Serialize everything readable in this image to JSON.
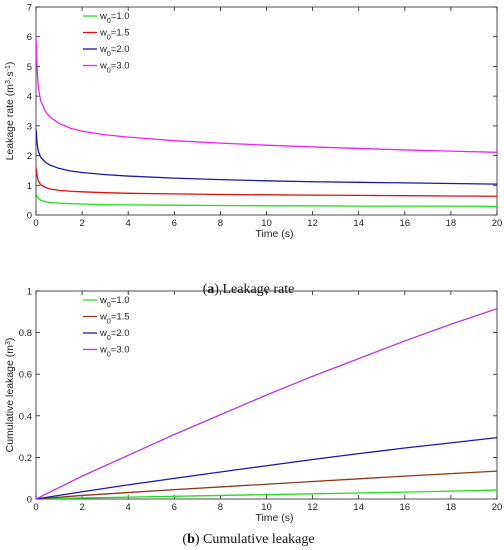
{
  "chart_data": [
    {
      "type": "line",
      "caption_letter": "a",
      "caption_text": "Leakage rate",
      "xlabel": "Time (s)",
      "ylabel_main": "Leakage rate (m",
      "ylabel_sup1": "3",
      "ylabel_mid": "·s",
      "ylabel_sup2": "-1",
      "ylabel_end": ")",
      "xlim": [
        0,
        20
      ],
      "ylim": [
        0,
        7
      ],
      "xticks": [
        "0",
        "2",
        "4",
        "6",
        "8",
        "10",
        "12",
        "14",
        "16",
        "18",
        "20"
      ],
      "yticks": [
        "0",
        "1",
        "2",
        "3",
        "4",
        "5",
        "6",
        "7"
      ],
      "grid": false,
      "legend_position": "top-left",
      "series": [
        {
          "name_main": "w",
          "name_sub": "0",
          "name_rest": "=1.0",
          "color": "#22dd22",
          "x": [
            0,
            0.05,
            0.1,
            0.2,
            0.4,
            0.6,
            1,
            1.5,
            2,
            3,
            4,
            6,
            8,
            10,
            12,
            14,
            16,
            18,
            20
          ],
          "y": [
            0.72,
            0.62,
            0.56,
            0.5,
            0.45,
            0.42,
            0.4,
            0.38,
            0.37,
            0.35,
            0.34,
            0.33,
            0.32,
            0.31,
            0.31,
            0.3,
            0.3,
            0.3,
            0.29
          ]
        },
        {
          "name_main": "w",
          "name_sub": "0",
          "name_rest": "=1.5",
          "color": "#dd1111",
          "x": [
            0,
            0.05,
            0.1,
            0.2,
            0.4,
            0.6,
            1,
            1.5,
            2,
            3,
            4,
            6,
            8,
            10,
            12,
            14,
            16,
            18,
            20
          ],
          "y": [
            1.6,
            1.3,
            1.15,
            1.02,
            0.93,
            0.88,
            0.83,
            0.8,
            0.78,
            0.75,
            0.73,
            0.71,
            0.69,
            0.68,
            0.67,
            0.66,
            0.65,
            0.64,
            0.63
          ]
        },
        {
          "name_main": "w",
          "name_sub": "0",
          "name_rest": "=2.0",
          "color": "#1a1aaa",
          "x": [
            0,
            0.05,
            0.1,
            0.2,
            0.4,
            0.6,
            1,
            1.5,
            2,
            3,
            4,
            6,
            8,
            10,
            12,
            14,
            16,
            18,
            20
          ],
          "y": [
            2.9,
            2.4,
            2.15,
            1.95,
            1.78,
            1.68,
            1.57,
            1.48,
            1.43,
            1.36,
            1.31,
            1.24,
            1.19,
            1.15,
            1.12,
            1.1,
            1.08,
            1.06,
            1.04
          ]
        },
        {
          "name_main": "w",
          "name_sub": "0",
          "name_rest": "=3.0",
          "color": "#ee22ee",
          "x": [
            0,
            0.05,
            0.1,
            0.2,
            0.4,
            0.6,
            1,
            1.5,
            2,
            3,
            4,
            6,
            8,
            10,
            12,
            14,
            16,
            18,
            20
          ],
          "y": [
            6.0,
            4.9,
            4.3,
            3.85,
            3.5,
            3.3,
            3.08,
            2.92,
            2.82,
            2.7,
            2.62,
            2.5,
            2.42,
            2.35,
            2.29,
            2.24,
            2.19,
            2.15,
            2.11
          ]
        }
      ]
    },
    {
      "type": "line",
      "caption_letter": "b",
      "caption_text": "Cumulative leakage",
      "xlabel": "Time (s)",
      "ylabel_main": "Cumulative leakage (m",
      "ylabel_sup1": "3",
      "ylabel_mid": "",
      "ylabel_sup2": "",
      "ylabel_end": ")",
      "xlim": [
        0,
        20
      ],
      "ylim": [
        0,
        1
      ],
      "xticks": [
        "0",
        "2",
        "4",
        "6",
        "8",
        "10",
        "12",
        "14",
        "16",
        "18",
        "20"
      ],
      "yticks": [
        "0",
        "0.2",
        "0.4",
        "0.6",
        "0.8",
        "1"
      ],
      "grid": false,
      "legend_position": "top-left",
      "series": [
        {
          "name_main": "w",
          "name_sub": "0",
          "name_rest": "=1.0",
          "color": "#22dd22",
          "x": [
            0,
            2,
            4,
            6,
            8,
            10,
            12,
            14,
            16,
            18,
            20
          ],
          "y": [
            0,
            0.005,
            0.009,
            0.013,
            0.017,
            0.021,
            0.025,
            0.029,
            0.033,
            0.038,
            0.043
          ]
        },
        {
          "name_main": "w",
          "name_sub": "0",
          "name_rest": "=1.5",
          "color": "#8b3a1a",
          "x": [
            0,
            2,
            4,
            6,
            8,
            10,
            12,
            14,
            16,
            18,
            20
          ],
          "y": [
            0,
            0.017,
            0.031,
            0.045,
            0.058,
            0.071,
            0.084,
            0.097,
            0.11,
            0.122,
            0.134
          ]
        },
        {
          "name_main": "w",
          "name_sub": "0",
          "name_rest": "=2.0",
          "color": "#1a1aaa",
          "x": [
            0,
            2,
            4,
            6,
            8,
            10,
            12,
            14,
            16,
            18,
            20
          ],
          "y": [
            0,
            0.035,
            0.068,
            0.099,
            0.13,
            0.16,
            0.19,
            0.218,
            0.245,
            0.27,
            0.295
          ]
        },
        {
          "name_main": "w",
          "name_sub": "0",
          "name_rest": "=3.0",
          "color": "#bb33ee",
          "x": [
            0,
            2,
            4,
            6,
            8,
            10,
            12,
            14,
            16,
            18,
            20
          ],
          "y": [
            0,
            0.11,
            0.21,
            0.31,
            0.405,
            0.5,
            0.59,
            0.675,
            0.76,
            0.84,
            0.915
          ]
        }
      ]
    }
  ]
}
